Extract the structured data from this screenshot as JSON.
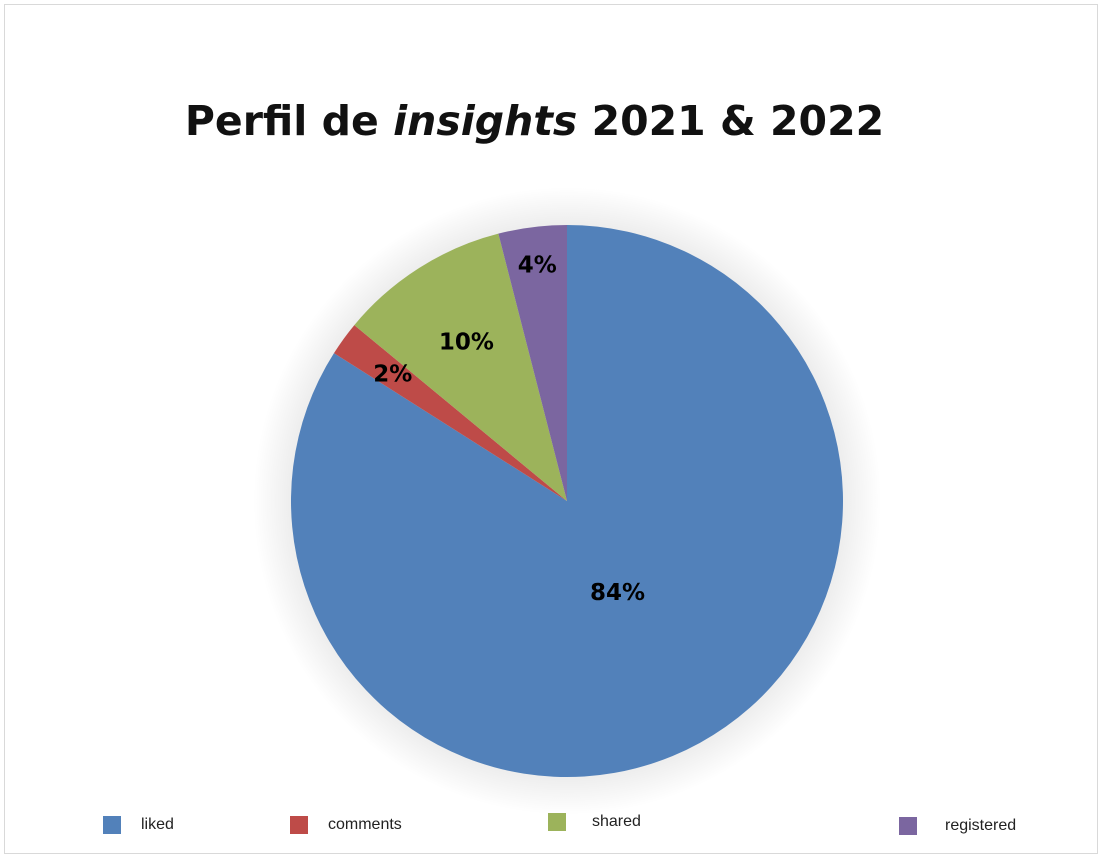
{
  "title": {
    "prefix": "Perfil de ",
    "italic": "insights",
    "suffix": " 2021 & 2022"
  },
  "chart_data": {
    "type": "pie",
    "title": "Perfil de insights 2021 & 2022",
    "categories": [
      "liked",
      "comments",
      "shared",
      "registered"
    ],
    "values": [
      84,
      2,
      10,
      4
    ],
    "labels": [
      "84%",
      "2%",
      "10%",
      "4%"
    ],
    "colors": [
      "#5281BA",
      "#BE4B48",
      "#9CB35B",
      "#7B66A0"
    ],
    "legend_position": "bottom"
  },
  "legend": {
    "items": [
      {
        "label": "liked",
        "color": "#5281BA"
      },
      {
        "label": "comments",
        "color": "#BE4B48"
      },
      {
        "label": "shared",
        "color": "#9CB35B"
      },
      {
        "label": "registered",
        "color": "#7B66A0"
      }
    ]
  }
}
